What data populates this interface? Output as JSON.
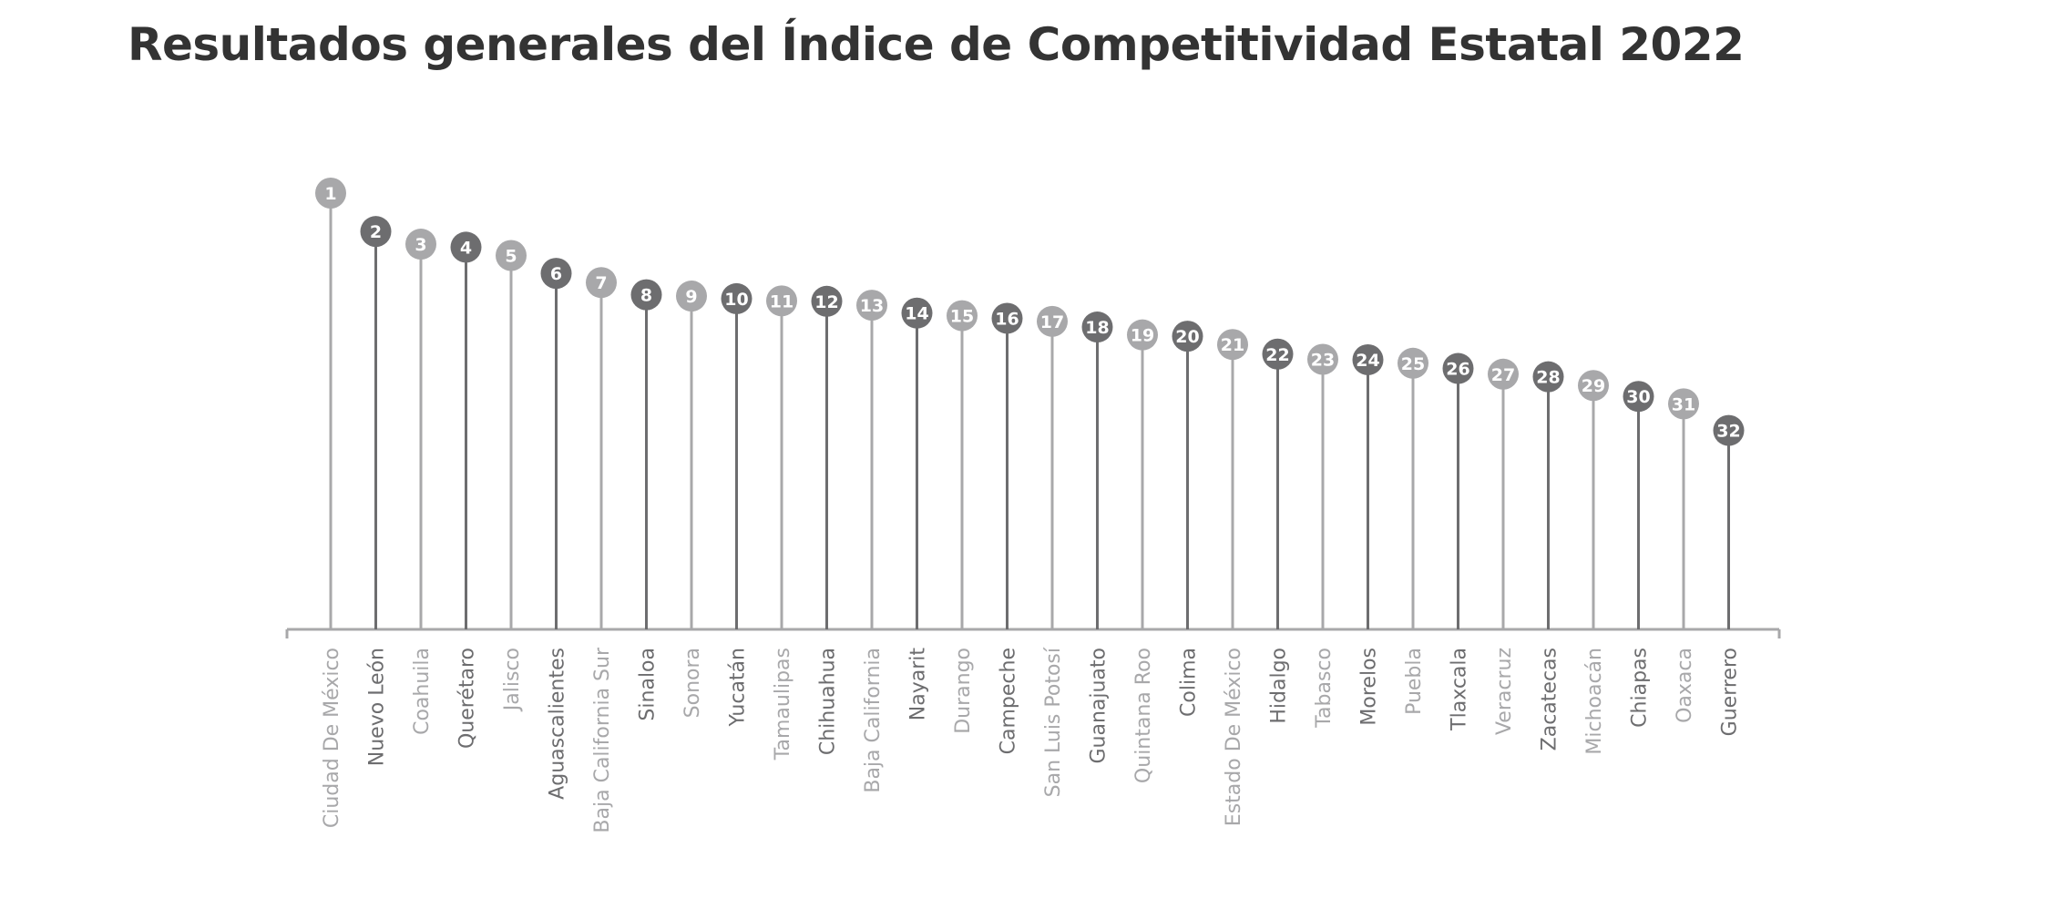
{
  "chart_data": {
    "type": "lollipop",
    "title": "Resultados generales del Índice de Competitividad Estatal 2022",
    "categories": [
      "Ciudad De México",
      "Nuevo León",
      "Coahuila",
      "Querétaro",
      "Jalisco",
      "Aguascalientes",
      "Baja California Sur",
      "Sinaloa",
      "Sonora",
      "Yucatán",
      "Tamaulipas",
      "Chihuahua",
      "Baja California",
      "Nayarit",
      "Durango",
      "Campeche",
      "San Luis Potosí",
      "Guanajuato",
      "Quintana Roo",
      "Colima",
      "Estado De México",
      "Hidalgo",
      "Tabasco",
      "Morelos",
      "Puebla",
      "Tlaxcala",
      "Veracruz",
      "Zacatecas",
      "Michoacán",
      "Chiapas",
      "Oaxaca",
      "Guerrero"
    ],
    "ranks": [
      "1",
      "2",
      "3",
      "4",
      "5",
      "6",
      "7",
      "8",
      "9",
      "10",
      "11",
      "12",
      "13",
      "14",
      "15",
      "16",
      "17",
      "18",
      "19",
      "20",
      "21",
      "22",
      "23",
      "24",
      "25",
      "26",
      "27",
      "28",
      "29",
      "30",
      "31",
      "32"
    ],
    "values": [
      100,
      91.2,
      88.3,
      87.6,
      85.7,
      81.6,
      79.5,
      76.7,
      76.4,
      75.8,
      75.3,
      75.2,
      74.3,
      72.5,
      71.9,
      71.3,
      70.6,
      69.3,
      67.5,
      67.2,
      65.3,
      63.1,
      61.9,
      61.8,
      61.0,
      59.8,
      58.5,
      57.9,
      55.9,
      53.4,
      51.7,
      45.6
    ],
    "ylim": [
      0,
      100
    ],
    "colors": {
      "dark": "#6d6d6f",
      "light": "#a8a8aa",
      "axis": "#a8a8aa"
    }
  }
}
